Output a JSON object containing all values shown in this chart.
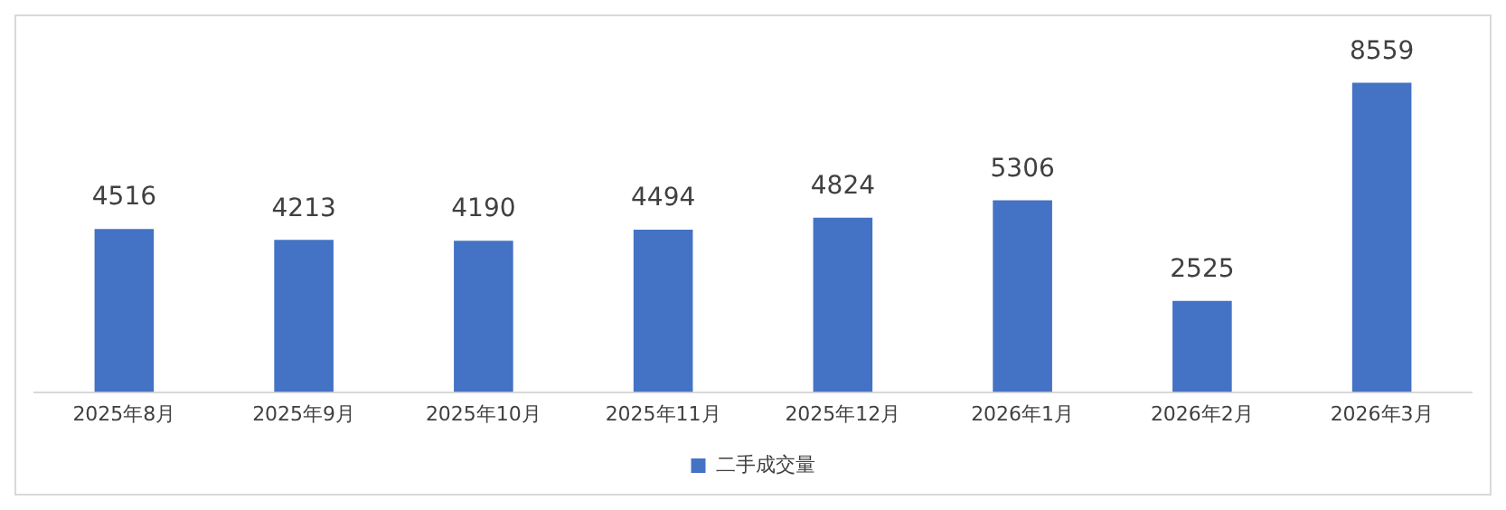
{
  "chart_data": {
    "type": "bar",
    "categories": [
      "2025年8月",
      "2025年9月",
      "2025年10月",
      "2025年11月",
      "2025年12月",
      "2026年1月",
      "2026年2月",
      "2026年3月"
    ],
    "series": [
      {
        "name": "二手成交量",
        "color": "#4472c4",
        "values": [
          4516,
          4213,
          4190,
          4494,
          4824,
          5306,
          2525,
          8559
        ]
      }
    ],
    "data_labels": true,
    "legend": "bottom",
    "grid": false
  }
}
